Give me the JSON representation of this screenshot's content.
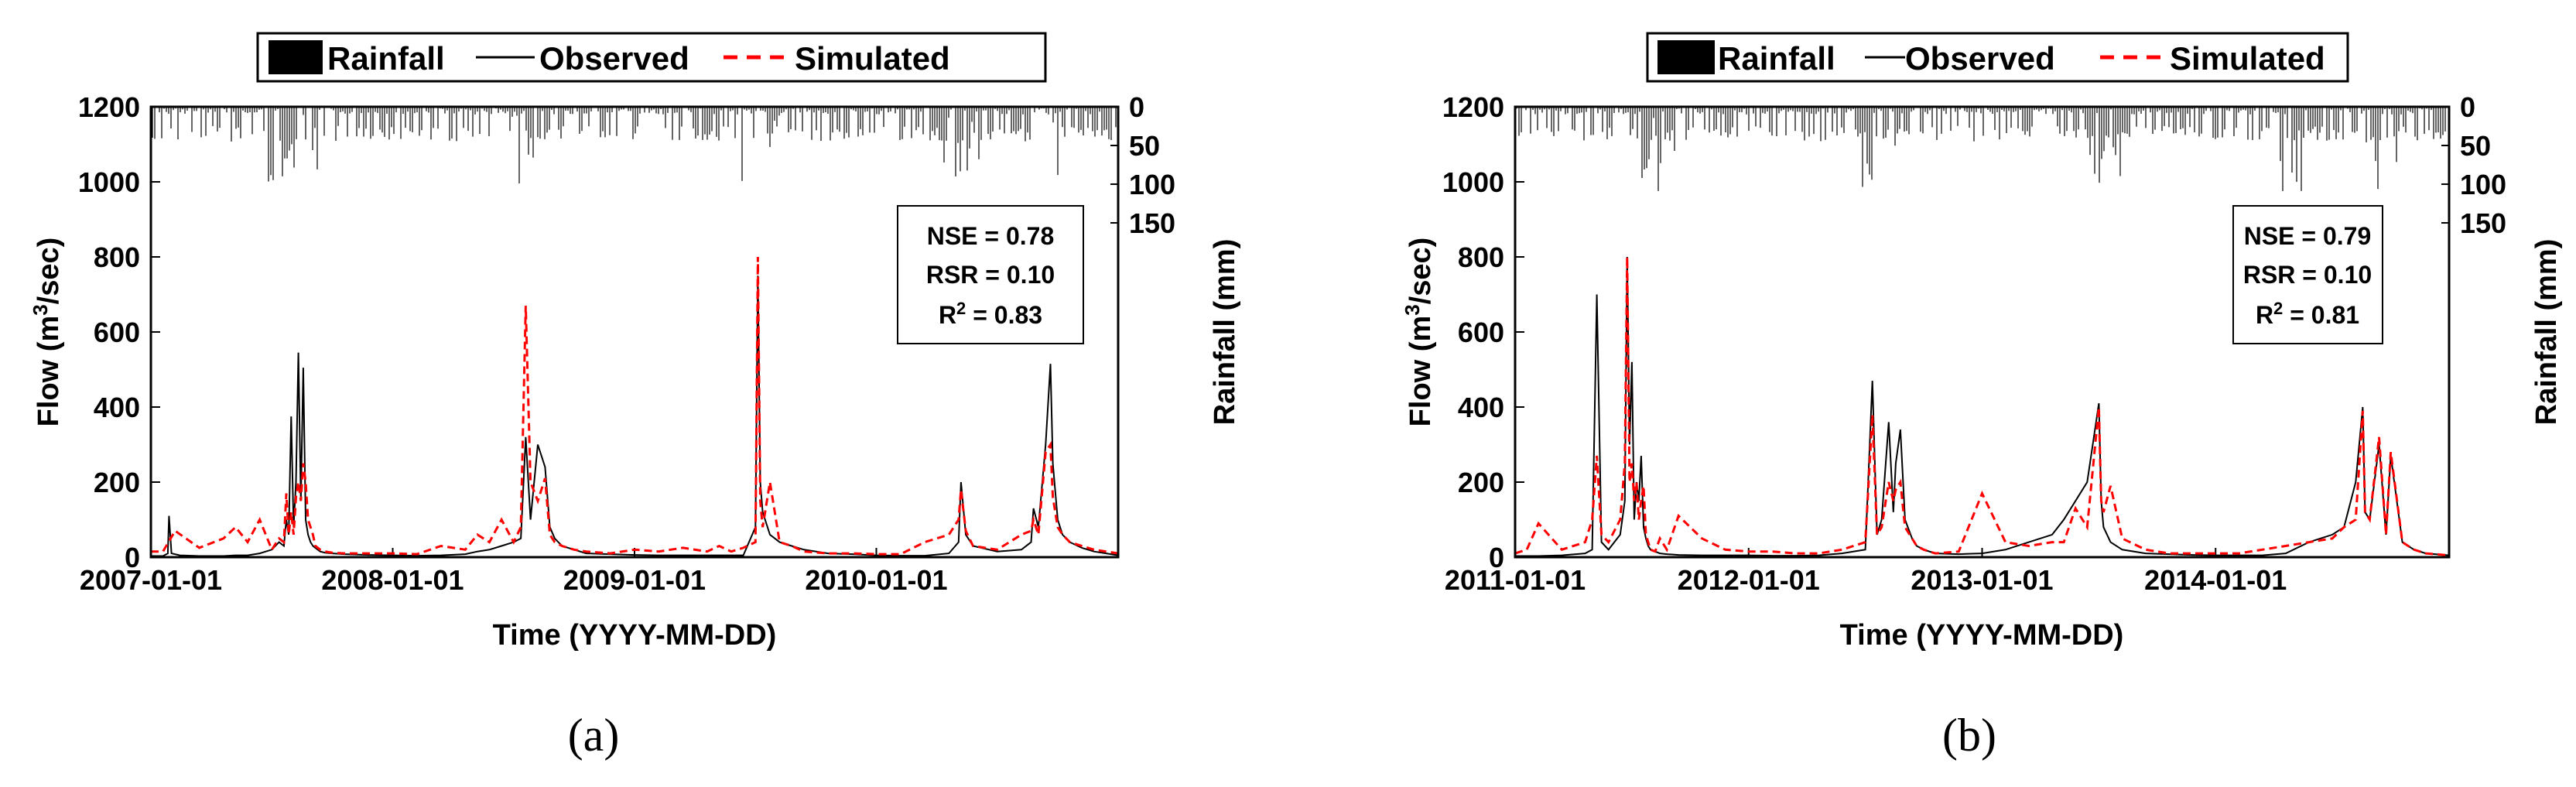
{
  "chart_data": [
    {
      "panel_label": "(a)",
      "type": "line",
      "legend": [
        "Rainfall",
        "Observed",
        "Simulated"
      ],
      "xlabel": "Time (YYYY-MM-DD)",
      "ylabel_prefix": "Flow (m",
      "ylabel_sup": "3",
      "ylabel_suffix": "/sec)",
      "ylabel_right": "Rainfall (mm)",
      "ylim": [
        0,
        1200
      ],
      "yticks": [
        "0",
        "200",
        "400",
        "600",
        "800",
        "1000",
        "1200"
      ],
      "rain_ticks": [
        "0",
        "50",
        "100",
        "150"
      ],
      "xlim": [
        0,
        4
      ],
      "xticks": [
        "2007-01-01",
        "2008-01-01",
        "2009-01-01",
        "2010-01-01"
      ],
      "stats": {
        "nse": "NSE = 0.78",
        "rsr": "RSR = 0.10",
        "r2_prefix": "R",
        "r2_sup": "2",
        "r2_suffix": " = 0.83"
      },
      "observed_x": [
        0.0,
        0.05,
        0.07,
        0.075,
        0.085,
        0.12,
        0.2,
        0.25,
        0.3,
        0.35,
        0.4,
        0.45,
        0.5,
        0.53,
        0.55,
        0.56,
        0.57,
        0.58,
        0.59,
        0.6,
        0.61,
        0.62,
        0.63,
        0.64,
        0.65,
        0.66,
        0.67,
        0.68,
        0.69,
        0.7,
        0.72,
        0.75,
        0.8,
        0.9,
        1.0,
        1.1,
        1.2,
        1.3,
        1.35,
        1.4,
        1.45,
        1.5,
        1.53,
        1.55,
        1.57,
        1.6,
        1.63,
        1.65,
        1.67,
        1.7,
        1.75,
        1.8,
        1.9,
        2.0,
        2.1,
        2.2,
        2.3,
        2.35,
        2.4,
        2.45,
        2.5,
        2.51,
        2.52,
        2.53,
        2.56,
        2.6,
        2.65,
        2.7,
        2.8,
        2.9,
        3.0,
        3.1,
        3.2,
        3.3,
        3.34,
        3.35,
        3.37,
        3.4,
        3.5,
        3.6,
        3.64,
        3.65,
        3.67,
        3.7,
        3.72,
        3.73,
        3.75,
        3.77,
        3.8,
        3.85,
        3.9,
        3.95,
        4.0
      ],
      "observed_y": [
        3,
        3,
        10,
        110,
        10,
        5,
        3,
        3,
        3,
        5,
        5,
        10,
        20,
        40,
        30,
        100,
        60,
        375,
        80,
        200,
        545,
        150,
        505,
        100,
        60,
        40,
        30,
        25,
        20,
        15,
        12,
        10,
        8,
        6,
        5,
        4,
        5,
        8,
        15,
        20,
        30,
        40,
        50,
        320,
        100,
        300,
        240,
        80,
        50,
        30,
        20,
        10,
        8,
        6,
        5,
        5,
        5,
        5,
        5,
        5,
        80,
        750,
        200,
        120,
        60,
        40,
        30,
        20,
        10,
        8,
        5,
        4,
        4,
        10,
        40,
        200,
        60,
        30,
        15,
        20,
        40,
        130,
        80,
        300,
        515,
        250,
        100,
        60,
        40,
        25,
        15,
        10,
        5
      ],
      "simulated_x": [
        0.0,
        0.05,
        0.1,
        0.2,
        0.3,
        0.35,
        0.4,
        0.45,
        0.5,
        0.53,
        0.55,
        0.56,
        0.57,
        0.58,
        0.59,
        0.6,
        0.61,
        0.62,
        0.63,
        0.64,
        0.65,
        0.66,
        0.67,
        0.68,
        0.7,
        0.72,
        0.75,
        0.8,
        0.9,
        1.0,
        1.1,
        1.2,
        1.3,
        1.35,
        1.4,
        1.45,
        1.5,
        1.53,
        1.55,
        1.57,
        1.6,
        1.63,
        1.65,
        1.67,
        1.7,
        1.75,
        1.8,
        1.9,
        2.0,
        2.1,
        2.2,
        2.3,
        2.35,
        2.4,
        2.45,
        2.5,
        2.51,
        2.52,
        2.53,
        2.56,
        2.6,
        2.65,
        2.7,
        2.8,
        2.9,
        3.0,
        3.1,
        3.2,
        3.3,
        3.34,
        3.35,
        3.37,
        3.4,
        3.5,
        3.6,
        3.64,
        3.65,
        3.67,
        3.7,
        3.72,
        3.73,
        3.75,
        3.77,
        3.8,
        3.85,
        3.9,
        3.95,
        4.0
      ],
      "simulated_y": [
        15,
        15,
        70,
        25,
        50,
        80,
        40,
        100,
        20,
        50,
        40,
        170,
        60,
        120,
        60,
        160,
        200,
        150,
        250,
        200,
        100,
        80,
        60,
        30,
        20,
        15,
        12,
        10,
        10,
        10,
        8,
        30,
        20,
        60,
        40,
        100,
        40,
        80,
        670,
        200,
        150,
        210,
        60,
        40,
        30,
        20,
        15,
        10,
        20,
        15,
        25,
        15,
        30,
        15,
        25,
        40,
        800,
        150,
        80,
        200,
        40,
        30,
        15,
        10,
        10,
        8,
        8,
        40,
        60,
        100,
        180,
        70,
        30,
        20,
        60,
        70,
        100,
        60,
        280,
        300,
        160,
        80,
        60,
        40,
        30,
        20,
        15,
        10
      ]
    },
    {
      "panel_label": "(b)",
      "type": "line",
      "legend": [
        "Rainfall",
        "Observed",
        "Simulated"
      ],
      "xlabel": "Time (YYYY-MM-DD)",
      "ylabel_prefix": "Flow (m",
      "ylabel_sup": "3",
      "ylabel_suffix": "/sec)",
      "ylabel_right": "Rainfall (mm)",
      "ylim": [
        0,
        1200
      ],
      "yticks": [
        "0",
        "200",
        "400",
        "600",
        "800",
        "1000",
        "1200"
      ],
      "rain_ticks": [
        "0",
        "50",
        "100",
        "150"
      ],
      "xlim": [
        0,
        4
      ],
      "xticks": [
        "2011-01-01",
        "2012-01-01",
        "2013-01-01",
        "2014-01-01"
      ],
      "stats": {
        "nse": "NSE = 0.79",
        "rsr": "RSR = 0.10",
        "r2_prefix": "R",
        "r2_sup": "2",
        "r2_suffix": " = 0.81"
      },
      "observed_x": [
        0.0,
        0.1,
        0.2,
        0.3,
        0.33,
        0.35,
        0.37,
        0.4,
        0.45,
        0.47,
        0.48,
        0.49,
        0.5,
        0.51,
        0.52,
        0.53,
        0.54,
        0.55,
        0.56,
        0.57,
        0.58,
        0.6,
        0.62,
        0.65,
        0.7,
        0.8,
        0.9,
        1.0,
        1.1,
        1.2,
        1.3,
        1.4,
        1.5,
        1.53,
        1.55,
        1.57,
        1.6,
        1.62,
        1.63,
        1.65,
        1.67,
        1.7,
        1.72,
        1.75,
        1.8,
        1.9,
        2.0,
        2.1,
        2.2,
        2.3,
        2.35,
        2.4,
        2.45,
        2.5,
        2.51,
        2.52,
        2.55,
        2.6,
        2.7,
        2.8,
        2.9,
        3.0,
        3.1,
        3.2,
        3.3,
        3.4,
        3.5,
        3.55,
        3.6,
        3.63,
        3.64,
        3.66,
        3.7,
        3.73,
        3.75,
        3.8,
        3.85,
        3.9,
        4.0
      ],
      "observed_y": [
        3,
        3,
        5,
        10,
        20,
        700,
        40,
        20,
        60,
        150,
        800,
        300,
        520,
        100,
        200,
        150,
        270,
        80,
        50,
        30,
        20,
        15,
        10,
        8,
        6,
        5,
        5,
        5,
        4,
        4,
        5,
        10,
        20,
        470,
        60,
        100,
        360,
        120,
        250,
        340,
        100,
        50,
        30,
        20,
        10,
        8,
        10,
        20,
        40,
        60,
        100,
        150,
        200,
        410,
        150,
        80,
        40,
        20,
        10,
        8,
        6,
        5,
        5,
        5,
        10,
        40,
        60,
        80,
        200,
        400,
        120,
        100,
        300,
        60,
        270,
        40,
        20,
        10,
        5
      ],
      "simulated_x": [
        0.0,
        0.05,
        0.1,
        0.2,
        0.3,
        0.33,
        0.35,
        0.37,
        0.4,
        0.45,
        0.47,
        0.48,
        0.49,
        0.5,
        0.51,
        0.52,
        0.53,
        0.54,
        0.55,
        0.56,
        0.57,
        0.58,
        0.6,
        0.62,
        0.65,
        0.7,
        0.8,
        0.9,
        1.0,
        1.1,
        1.2,
        1.3,
        1.4,
        1.5,
        1.53,
        1.55,
        1.57,
        1.6,
        1.62,
        1.63,
        1.65,
        1.67,
        1.7,
        1.72,
        1.75,
        1.8,
        1.9,
        2.0,
        2.1,
        2.2,
        2.3,
        2.35,
        2.4,
        2.45,
        2.5,
        2.51,
        2.52,
        2.55,
        2.6,
        2.7,
        2.8,
        2.9,
        3.0,
        3.1,
        3.2,
        3.3,
        3.4,
        3.5,
        3.55,
        3.6,
        3.63,
        3.64,
        3.66,
        3.7,
        3.73,
        3.75,
        3.8,
        3.85,
        3.9,
        4.0
      ],
      "simulated_y": [
        10,
        20,
        90,
        20,
        40,
        100,
        270,
        60,
        40,
        100,
        250,
        800,
        200,
        250,
        150,
        200,
        100,
        150,
        190,
        60,
        40,
        20,
        15,
        50,
        20,
        110,
        50,
        20,
        15,
        15,
        10,
        10,
        20,
        40,
        380,
        60,
        80,
        200,
        150,
        180,
        200,
        80,
        50,
        30,
        20,
        10,
        15,
        170,
        40,
        30,
        40,
        40,
        130,
        80,
        400,
        150,
        120,
        190,
        50,
        20,
        10,
        10,
        10,
        10,
        20,
        30,
        40,
        50,
        80,
        100,
        390,
        120,
        100,
        320,
        60,
        280,
        40,
        20,
        10,
        5
      ]
    }
  ]
}
